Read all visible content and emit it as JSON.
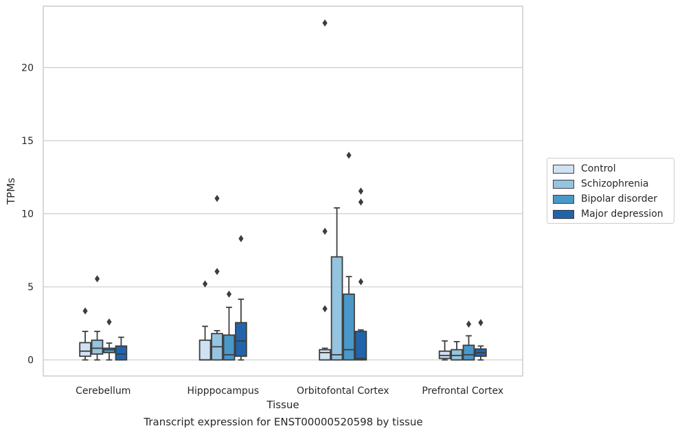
{
  "chart_data": {
    "type": "box",
    "title": "",
    "caption": "Transcript expression for ENST00000520598 by tissue",
    "xlabel": "Tissue",
    "ylabel": "TPMs",
    "ylim": [
      -1.1,
      24.2
    ],
    "yticks": [
      "0",
      "5",
      "10",
      "15",
      "20"
    ],
    "ytick_values": [
      0,
      5,
      10,
      15,
      20
    ],
    "grid": "horizontal",
    "legend_position": "right",
    "categories": [
      "Cerebellum",
      "Hipppocampus",
      "Orbitofontal Cortex",
      "Prefrontal Cortex"
    ],
    "series": [
      {
        "name": "Control",
        "color": "#d0e1f2",
        "boxes": [
          {
            "whisker_low": 0.0,
            "q1": 0.25,
            "median": 0.6,
            "q3": 1.18,
            "whisker_high": 1.95,
            "outliers": [
              3.35
            ]
          },
          {
            "whisker_low": 0.0,
            "q1": 0.0,
            "median": 0.0,
            "q3": 1.35,
            "whisker_high": 2.3,
            "outliers": [
              5.2
            ]
          },
          {
            "whisker_low": 0.0,
            "q1": 0.0,
            "median": 0.5,
            "q3": 0.7,
            "whisker_high": 0.8,
            "outliers": [
              3.5,
              8.8,
              23.05
            ]
          },
          {
            "whisker_low": 0.0,
            "q1": 0.1,
            "median": 0.3,
            "q3": 0.6,
            "whisker_high": 1.3,
            "outliers": []
          }
        ]
      },
      {
        "name": "Schizophrenia",
        "color": "#94c4df",
        "boxes": [
          {
            "whisker_low": 0.0,
            "q1": 0.4,
            "median": 0.8,
            "q3": 1.35,
            "whisker_high": 1.95,
            "outliers": [
              5.55
            ]
          },
          {
            "whisker_low": 0.0,
            "q1": 0.0,
            "median": 0.9,
            "q3": 1.8,
            "whisker_high": 2.0,
            "outliers": [
              6.05,
              11.05
            ]
          },
          {
            "whisker_low": 0.0,
            "q1": 0.0,
            "median": 0.35,
            "q3": 7.05,
            "whisker_high": 10.4,
            "outliers": []
          },
          {
            "whisker_low": 0.0,
            "q1": 0.0,
            "median": 0.3,
            "q3": 0.7,
            "whisker_high": 1.25,
            "outliers": []
          }
        ]
      },
      {
        "name": "Bipolar disorder",
        "color": "#4a98c9",
        "boxes": [
          {
            "whisker_low": 0.0,
            "q1": 0.5,
            "median": 0.7,
            "q3": 0.8,
            "whisker_high": 1.15,
            "outliers": [
              2.6
            ]
          },
          {
            "whisker_low": 0.0,
            "q1": 0.0,
            "median": 0.35,
            "q3": 1.7,
            "whisker_high": 3.6,
            "outliers": [
              4.5
            ]
          },
          {
            "whisker_low": 0.0,
            "q1": 0.0,
            "median": 0.7,
            "q3": 4.5,
            "whisker_high": 5.7,
            "outliers": [
              14.0
            ]
          },
          {
            "whisker_low": 0.0,
            "q1": 0.0,
            "median": 0.35,
            "q3": 1.0,
            "whisker_high": 1.65,
            "outliers": [
              2.45
            ]
          }
        ]
      },
      {
        "name": "Major depression",
        "color": "#2164ab",
        "boxes": [
          {
            "whisker_low": 0.0,
            "q1": 0.0,
            "median": 0.4,
            "q3": 0.95,
            "whisker_high": 1.55,
            "outliers": []
          },
          {
            "whisker_low": 0.0,
            "q1": 0.25,
            "median": 1.3,
            "q3": 2.55,
            "whisker_high": 4.15,
            "outliers": [
              8.3
            ]
          },
          {
            "whisker_low": 0.0,
            "q1": 0.0,
            "median": 0.1,
            "q3": 1.95,
            "whisker_high": 2.05,
            "outliers": [
              5.35,
              10.8,
              11.55
            ]
          },
          {
            "whisker_low": 0.0,
            "q1": 0.25,
            "median": 0.5,
            "q3": 0.75,
            "whisker_high": 0.95,
            "outliers": [
              2.55
            ]
          }
        ]
      }
    ]
  }
}
